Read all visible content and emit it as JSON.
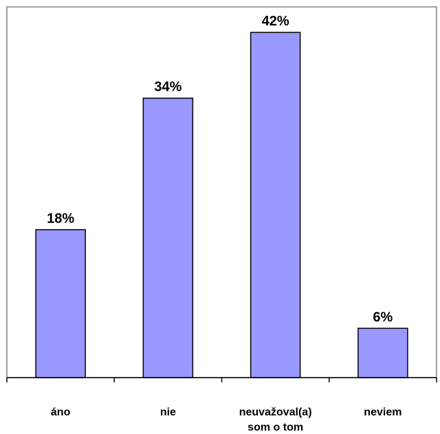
{
  "chart_data": {
    "type": "bar",
    "categories": [
      [
        "áno"
      ],
      [
        "nie"
      ],
      [
        "neuvažoval(a)",
        "som o tom"
      ],
      [
        "neviem"
      ]
    ],
    "values": [
      18,
      34,
      42,
      6
    ],
    "value_labels": [
      "18%",
      "34%",
      "42%",
      "6%"
    ],
    "title": "",
    "xlabel": "",
    "ylabel": "",
    "ylim": [
      0,
      50
    ],
    "grid": false,
    "legend": "none",
    "colors": {
      "bar_fill": "#9999ff",
      "bar_stroke": "#000000",
      "plot_border": "#808080"
    }
  }
}
